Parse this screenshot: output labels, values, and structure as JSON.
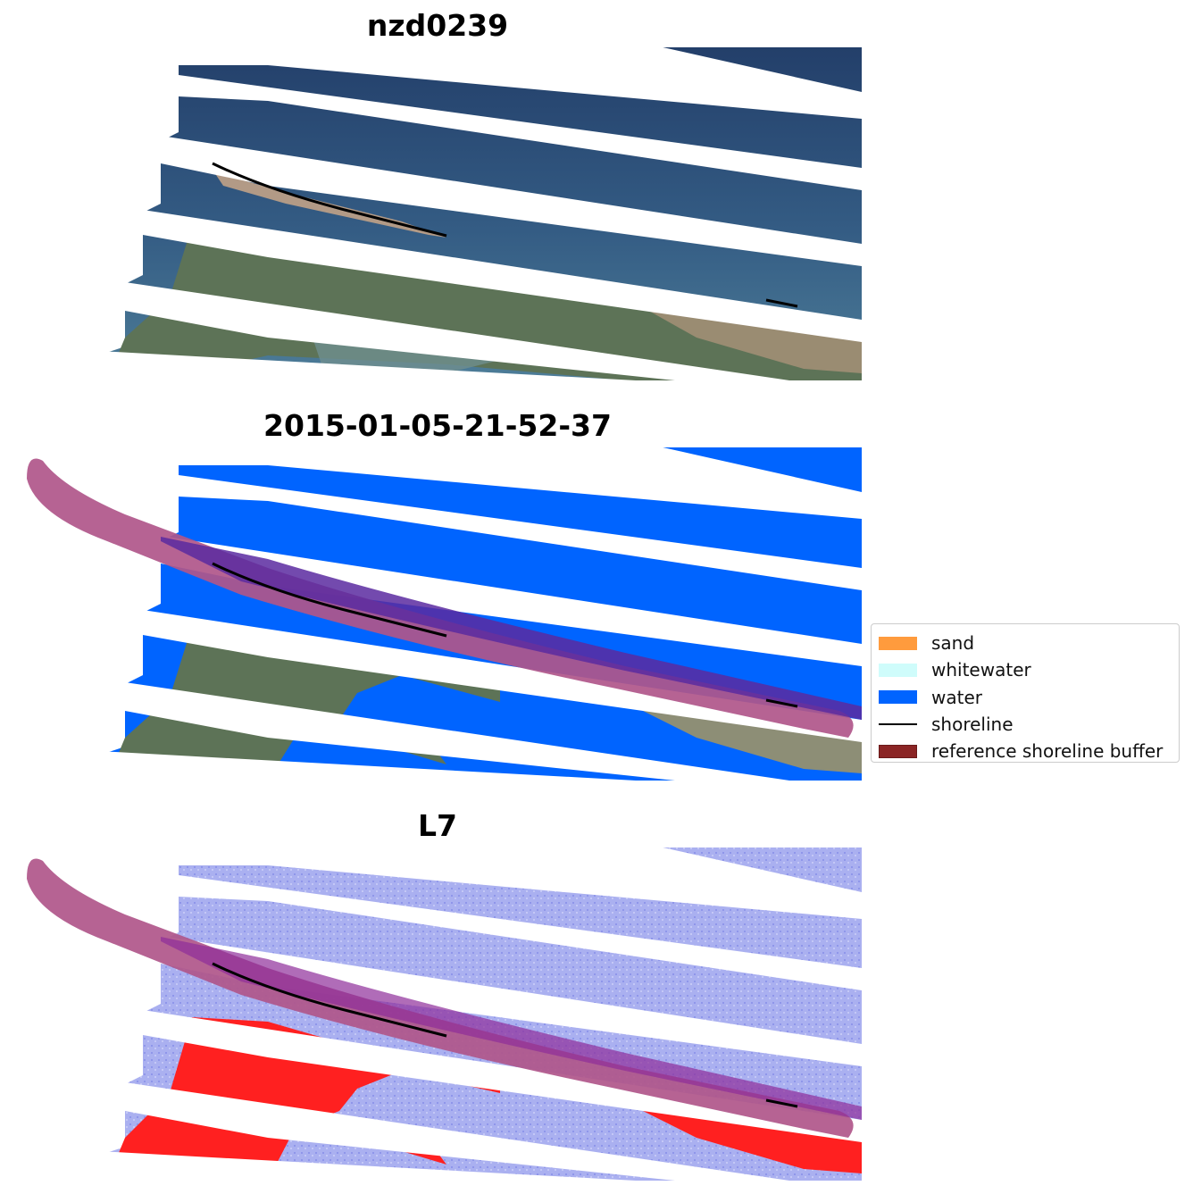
{
  "panels": [
    {
      "title": "nzd0239"
    },
    {
      "title": "2015-01-05-21-52-37"
    },
    {
      "title": "L7"
    }
  ],
  "legend": {
    "items": [
      {
        "label": "sand",
        "color": "#ff9b3d",
        "kind": "patch"
      },
      {
        "label": "whitewater",
        "color": "#cffcfb",
        "kind": "patch"
      },
      {
        "label": "water",
        "color": "#0064ff",
        "kind": "patch"
      },
      {
        "label": "shoreline",
        "color": "#000000",
        "kind": "line"
      },
      {
        "label": "reference shoreline buffer",
        "color": "#8b2525",
        "kind": "patch"
      }
    ]
  },
  "colors": {
    "sea_dark": "#2b4570",
    "sea_mid": "#3f6c90",
    "land_green": "#5f7558",
    "sand_beach": "#b29a86",
    "water_class": "#0064ff",
    "buffer": "#b0568a",
    "buffer_overlap": "#5a2aa0",
    "index_water": "#aab0f0",
    "index_land": "#ff2020"
  }
}
